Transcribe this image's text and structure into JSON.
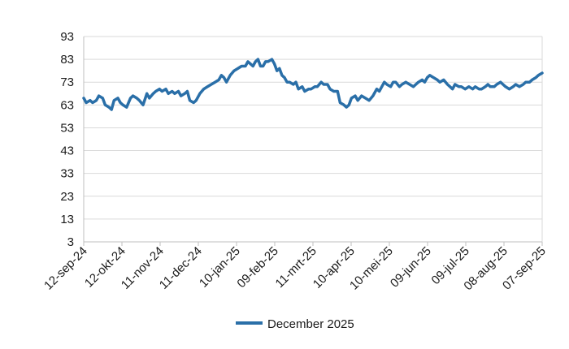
{
  "chart_data": {
    "type": "line",
    "title": "",
    "xlabel": "",
    "ylabel": "",
    "ylim": [
      3,
      93
    ],
    "yticks": [
      3,
      13,
      23,
      33,
      43,
      53,
      63,
      73,
      83,
      93
    ],
    "x_range": [
      "2024-09-12",
      "2025-09-10"
    ],
    "x_tick_labels": [
      "12-sep-24",
      "12-okt-24",
      "11-nov-24",
      "11-dec-24",
      "10-jan-25",
      "09-feb-25",
      "11-mrt-25",
      "10-apr-25",
      "10-mei-25",
      "09-jun-25",
      "09-jul-25",
      "08-aug-25",
      "07-sep-25"
    ],
    "grid": "horizontal",
    "legend_position": "bottom",
    "line_color": "#2a6fa8",
    "series": [
      {
        "name": "December 2025",
        "points": [
          [
            "2024-09-12",
            66
          ],
          [
            "2024-09-14",
            64
          ],
          [
            "2024-09-17",
            65
          ],
          [
            "2024-09-19",
            64
          ],
          [
            "2024-09-22",
            65
          ],
          [
            "2024-09-24",
            67
          ],
          [
            "2024-09-27",
            66
          ],
          [
            "2024-09-29",
            63
          ],
          [
            "2024-10-02",
            62
          ],
          [
            "2024-10-04",
            61
          ],
          [
            "2024-10-06",
            65
          ],
          [
            "2024-10-09",
            66
          ],
          [
            "2024-10-11",
            64
          ],
          [
            "2024-10-13",
            63
          ],
          [
            "2024-10-16",
            62
          ],
          [
            "2024-10-19",
            66
          ],
          [
            "2024-10-21",
            67
          ],
          [
            "2024-10-24",
            66
          ],
          [
            "2024-10-26",
            65
          ],
          [
            "2024-10-29",
            63
          ],
          [
            "2024-11-01",
            68
          ],
          [
            "2024-11-03",
            66
          ],
          [
            "2024-11-06",
            68
          ],
          [
            "2024-11-08",
            69
          ],
          [
            "2024-11-11",
            70
          ],
          [
            "2024-11-13",
            69
          ],
          [
            "2024-11-16",
            70
          ],
          [
            "2024-11-18",
            68
          ],
          [
            "2024-11-21",
            69
          ],
          [
            "2024-11-23",
            68
          ],
          [
            "2024-11-26",
            69
          ],
          [
            "2024-11-28",
            67
          ],
          [
            "2024-12-01",
            68
          ],
          [
            "2024-12-03",
            69
          ],
          [
            "2024-12-05",
            65
          ],
          [
            "2024-12-08",
            64
          ],
          [
            "2024-12-10",
            65
          ],
          [
            "2024-12-13",
            68
          ],
          [
            "2024-12-16",
            70
          ],
          [
            "2024-12-19",
            71
          ],
          [
            "2024-12-22",
            72
          ],
          [
            "2024-12-25",
            73
          ],
          [
            "2024-12-28",
            74
          ],
          [
            "2024-12-30",
            76
          ],
          [
            "2025-01-01",
            75
          ],
          [
            "2025-01-03",
            73
          ],
          [
            "2025-01-06",
            76
          ],
          [
            "2025-01-09",
            78
          ],
          [
            "2025-01-12",
            79
          ],
          [
            "2025-01-15",
            80
          ],
          [
            "2025-01-18",
            80
          ],
          [
            "2025-01-20",
            82
          ],
          [
            "2025-01-22",
            81
          ],
          [
            "2025-01-24",
            80
          ],
          [
            "2025-01-26",
            82
          ],
          [
            "2025-01-28",
            83
          ],
          [
            "2025-01-30",
            80
          ],
          [
            "2025-02-01",
            80
          ],
          [
            "2025-02-03",
            82
          ],
          [
            "2025-02-05",
            82
          ],
          [
            "2025-02-08",
            83
          ],
          [
            "2025-02-10",
            81
          ],
          [
            "2025-02-12",
            78
          ],
          [
            "2025-02-14",
            79
          ],
          [
            "2025-02-16",
            76
          ],
          [
            "2025-02-18",
            75
          ],
          [
            "2025-02-20",
            73
          ],
          [
            "2025-02-22",
            73
          ],
          [
            "2025-02-25",
            72
          ],
          [
            "2025-02-27",
            73
          ],
          [
            "2025-03-01",
            70
          ],
          [
            "2025-03-04",
            71
          ],
          [
            "2025-03-06",
            69
          ],
          [
            "2025-03-09",
            70
          ],
          [
            "2025-03-11",
            70
          ],
          [
            "2025-03-14",
            71
          ],
          [
            "2025-03-16",
            71
          ],
          [
            "2025-03-19",
            73
          ],
          [
            "2025-03-21",
            72
          ],
          [
            "2025-03-24",
            72
          ],
          [
            "2025-03-26",
            70
          ],
          [
            "2025-03-29",
            69
          ],
          [
            "2025-04-01",
            69
          ],
          [
            "2025-04-03",
            64
          ],
          [
            "2025-04-06",
            63
          ],
          [
            "2025-04-08",
            62
          ],
          [
            "2025-04-10",
            63
          ],
          [
            "2025-04-12",
            66
          ],
          [
            "2025-04-15",
            67
          ],
          [
            "2025-04-17",
            65
          ],
          [
            "2025-04-20",
            67
          ],
          [
            "2025-04-23",
            66
          ],
          [
            "2025-04-26",
            65
          ],
          [
            "2025-04-29",
            67
          ],
          [
            "2025-05-02",
            70
          ],
          [
            "2025-05-04",
            69
          ],
          [
            "2025-05-06",
            71
          ],
          [
            "2025-05-08",
            73
          ],
          [
            "2025-05-10",
            72
          ],
          [
            "2025-05-13",
            71
          ],
          [
            "2025-05-15",
            73
          ],
          [
            "2025-05-17",
            73
          ],
          [
            "2025-05-20",
            71
          ],
          [
            "2025-05-22",
            72
          ],
          [
            "2025-05-25",
            73
          ],
          [
            "2025-05-28",
            72
          ],
          [
            "2025-05-31",
            71
          ],
          [
            "2025-06-02",
            72
          ],
          [
            "2025-06-04",
            73
          ],
          [
            "2025-06-07",
            74
          ],
          [
            "2025-06-09",
            73
          ],
          [
            "2025-06-11",
            75
          ],
          [
            "2025-06-13",
            76
          ],
          [
            "2025-06-16",
            75
          ],
          [
            "2025-06-19",
            74
          ],
          [
            "2025-06-21",
            73
          ],
          [
            "2025-06-24",
            74
          ],
          [
            "2025-06-27",
            72
          ],
          [
            "2025-06-29",
            71
          ],
          [
            "2025-07-01",
            70
          ],
          [
            "2025-07-03",
            72
          ],
          [
            "2025-07-06",
            71
          ],
          [
            "2025-07-08",
            71
          ],
          [
            "2025-07-11",
            70
          ],
          [
            "2025-07-14",
            71
          ],
          [
            "2025-07-17",
            70
          ],
          [
            "2025-07-19",
            71
          ],
          [
            "2025-07-22",
            70
          ],
          [
            "2025-07-24",
            70
          ],
          [
            "2025-07-27",
            71
          ],
          [
            "2025-07-29",
            72
          ],
          [
            "2025-07-31",
            71
          ],
          [
            "2025-08-03",
            71
          ],
          [
            "2025-08-05",
            72
          ],
          [
            "2025-08-08",
            73
          ],
          [
            "2025-08-10",
            72
          ],
          [
            "2025-08-12",
            71
          ],
          [
            "2025-08-15",
            70
          ],
          [
            "2025-08-18",
            71
          ],
          [
            "2025-08-20",
            72
          ],
          [
            "2025-08-23",
            71
          ],
          [
            "2025-08-26",
            72
          ],
          [
            "2025-08-28",
            73
          ],
          [
            "2025-08-31",
            73
          ],
          [
            "2025-09-02",
            74
          ],
          [
            "2025-09-05",
            75
          ],
          [
            "2025-09-07",
            76
          ],
          [
            "2025-09-10",
            77
          ]
        ]
      }
    ]
  }
}
